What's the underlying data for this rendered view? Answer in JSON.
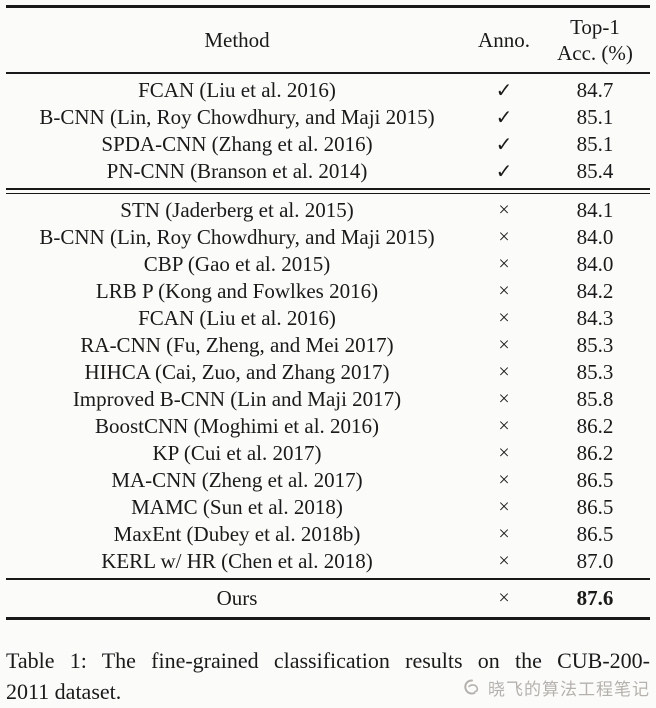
{
  "colors": {
    "background": "#fbfbf9",
    "text": "#1a1a1a",
    "rule": "#191919",
    "watermark": "#b5b2ad"
  },
  "table": {
    "header": {
      "method": "Method",
      "anno": "Anno.",
      "acc_line1": "Top-1",
      "acc_line2": "Acc. (%)"
    },
    "groups": [
      {
        "rows": [
          {
            "method": "FCAN (Liu et al. 2016)",
            "anno": "✓",
            "acc": "84.7"
          },
          {
            "method": "B-CNN (Lin, Roy Chowdhury, and Maji 2015)",
            "anno": "✓",
            "acc": "85.1"
          },
          {
            "method": "SPDA-CNN (Zhang et al. 2016)",
            "anno": "✓",
            "acc": "85.1"
          },
          {
            "method": "PN-CNN (Branson et al. 2014)",
            "anno": "✓",
            "acc": "85.4"
          }
        ]
      },
      {
        "rows": [
          {
            "method": "STN (Jaderberg et al. 2015)",
            "anno": "×",
            "acc": "84.1"
          },
          {
            "method": "B-CNN (Lin, Roy Chowdhury, and Maji 2015)",
            "anno": "×",
            "acc": "84.0"
          },
          {
            "method": "CBP (Gao et al. 2015)",
            "anno": "×",
            "acc": "84.0"
          },
          {
            "method": "LRB P (Kong and Fowlkes 2016)",
            "anno": "×",
            "acc": "84.2"
          },
          {
            "method": "FCAN (Liu et al. 2016)",
            "anno": "×",
            "acc": "84.3"
          },
          {
            "method": "RA-CNN (Fu, Zheng, and Mei 2017)",
            "anno": "×",
            "acc": "85.3"
          },
          {
            "method": "HIHCA (Cai, Zuo, and Zhang 2017)",
            "anno": "×",
            "acc": "85.3"
          },
          {
            "method": "Improved B-CNN (Lin and Maji 2017)",
            "anno": "×",
            "acc": "85.8"
          },
          {
            "method": "BoostCNN (Moghimi et al. 2016)",
            "anno": "×",
            "acc": "86.2"
          },
          {
            "method": "KP (Cui et al. 2017)",
            "anno": "×",
            "acc": "86.2"
          },
          {
            "method": "MA-CNN (Zheng et al. 2017)",
            "anno": "×",
            "acc": "86.5"
          },
          {
            "method": "MAMC (Sun et al. 2018)",
            "anno": "×",
            "acc": "86.5"
          },
          {
            "method": "MaxEnt (Dubey et al. 2018b)",
            "anno": "×",
            "acc": "86.5"
          },
          {
            "method": "KERL w/ HR (Chen et al. 2018)",
            "anno": "×",
            "acc": "87.0"
          }
        ]
      }
    ],
    "ours": {
      "method": "Ours",
      "anno": "×",
      "acc": "87.6"
    }
  },
  "caption": {
    "line1": "Table 1: The fine-grained classification results on the CUB-200-",
    "line2": "2011 dataset."
  },
  "watermark": {
    "text": "晓飞的算法工程笔记"
  }
}
